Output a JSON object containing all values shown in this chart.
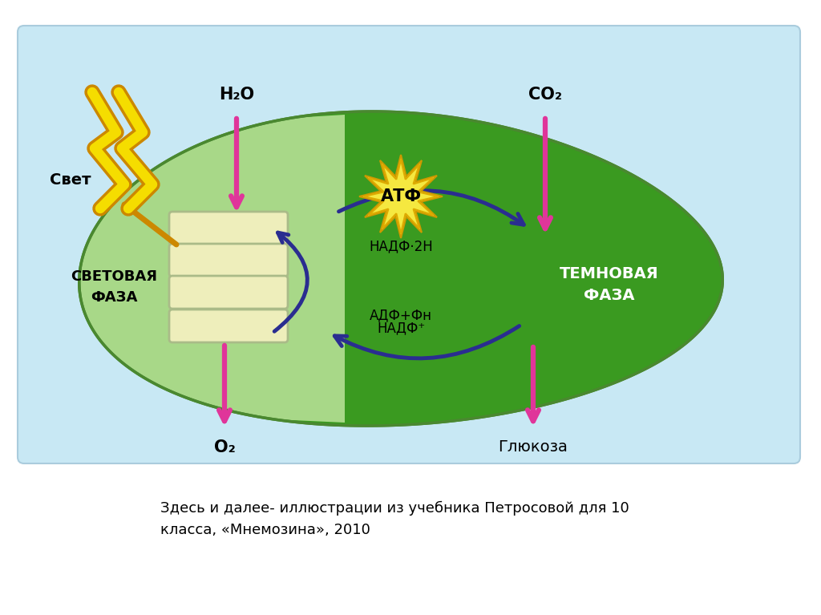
{
  "fig_bg": "#ffffff",
  "diagram_bg": "#c8e8f4",
  "chloro_light": "#a8d888",
  "chloro_dark": "#3a9a20",
  "chloro_edge": "#4a8830",
  "thylakoid_fill": "#eeeebb",
  "thylakoid_edge": "#aabb88",
  "arrow_pink": "#e0359a",
  "arrow_blue": "#2a2d90",
  "atf_star1": "#f5e840",
  "atf_star2": "#f5e840",
  "bolt_yellow": "#f5dd00",
  "bolt_orange": "#cc8800",
  "title_text": "Здесь и далее- иллюстрации из учебника Петросовой для 10\nкласса, «Мнемозина», 2010",
  "svet_label": "Свет",
  "h2o_label": "H₂O",
  "co2_label": "CO₂",
  "o2_label": "O₂",
  "atf_label": "АТФ",
  "nadf2h_label": "НАДФ·2Н",
  "adf_label": "АДФ+Фн",
  "nadfp_label": "НАДФ⁺",
  "svetovaya_label": "СВЕТОВАЯ\nФАЗА",
  "temnaya_label": "ТЕМНОВАЯ\nФАЗА",
  "glukoza_label": "Глюкоза"
}
